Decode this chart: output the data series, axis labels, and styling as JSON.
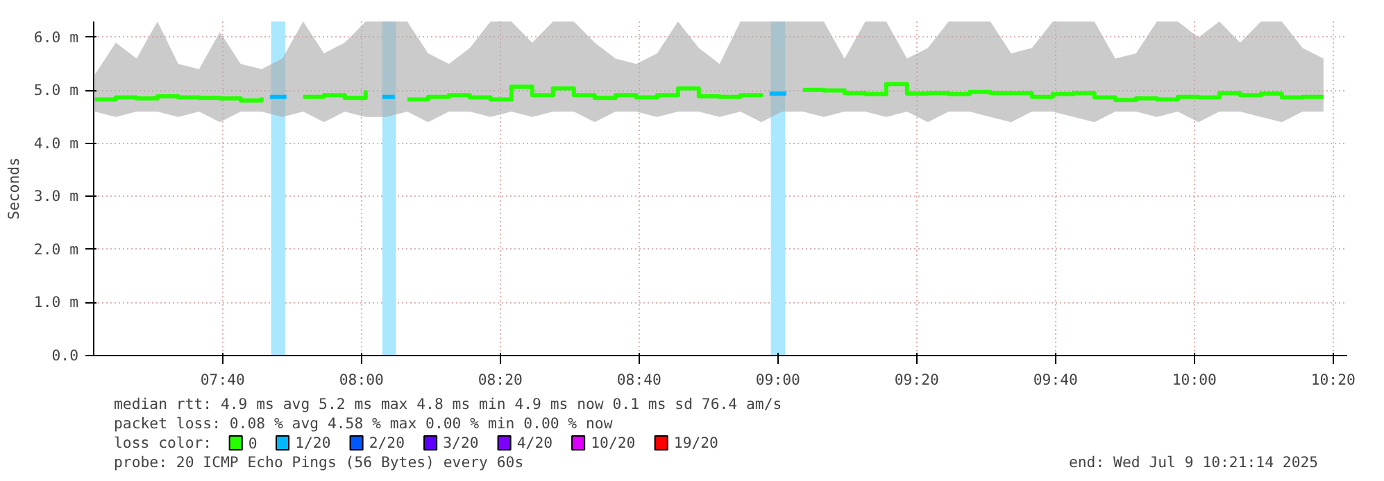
{
  "chart_data": {
    "type": "step",
    "ylabel": "Seconds",
    "legend_title": "loss color:",
    "legend": "bottom",
    "grid": true,
    "xlim": [
      7.357,
      10.367
    ],
    "ylim": [
      0,
      6.3
    ],
    "xticks": [
      {
        "value": 7.6667,
        "label": "07:40"
      },
      {
        "value": 8.0,
        "label": "08:00"
      },
      {
        "value": 8.3333,
        "label": "08:20"
      },
      {
        "value": 8.6667,
        "label": "08:40"
      },
      {
        "value": 9.0,
        "label": "09:00"
      },
      {
        "value": 9.3333,
        "label": "09:20"
      },
      {
        "value": 9.6667,
        "label": "09:40"
      },
      {
        "value": 10.0,
        "label": "10:00"
      },
      {
        "value": 10.3333,
        "label": "10:20"
      }
    ],
    "yticks": [
      {
        "value": 0,
        "label": "0.0"
      },
      {
        "value": 1,
        "label": "1.0 m"
      },
      {
        "value": 2,
        "label": "2.0 m"
      },
      {
        "value": 3,
        "label": "3.0 m"
      },
      {
        "value": 4,
        "label": "4.0 m"
      },
      {
        "value": 5,
        "label": "5.0 m"
      },
      {
        "value": 6,
        "label": "6.0 m"
      }
    ],
    "x": [
      7.36,
      7.41,
      7.46,
      7.51,
      7.56,
      7.61,
      7.66,
      7.71,
      7.76,
      7.81,
      7.86,
      7.91,
      7.96,
      8.01,
      8.06,
      8.11,
      8.16,
      8.21,
      8.26,
      8.31,
      8.36,
      8.41,
      8.46,
      8.51,
      8.56,
      8.61,
      8.66,
      8.71,
      8.76,
      8.81,
      8.86,
      8.91,
      8.96,
      9.01,
      9.06,
      9.11,
      9.16,
      9.21,
      9.26,
      9.31,
      9.36,
      9.41,
      9.46,
      9.51,
      9.56,
      9.61,
      9.66,
      9.71,
      9.76,
      9.81,
      9.86,
      9.91,
      9.96,
      10.01,
      10.06,
      10.11,
      10.16,
      10.21,
      10.26,
      10.31
    ],
    "series": [
      {
        "name": "0",
        "color": "#26ff00",
        "values": [
          4.83,
          4.87,
          4.85,
          4.89,
          4.87,
          4.86,
          4.85,
          4.81,
          4.87,
          null,
          4.88,
          4.91,
          4.86,
          5.0,
          null,
          4.83,
          4.88,
          4.91,
          4.87,
          4.83,
          5.07,
          4.91,
          5.04,
          4.91,
          4.86,
          4.91,
          4.87,
          4.91,
          5.04,
          4.89,
          4.88,
          4.91,
          4.88,
          null,
          5.01,
          5.0,
          4.95,
          4.93,
          5.12,
          4.94,
          4.95,
          4.93,
          4.97,
          4.95,
          4.95,
          4.88,
          4.93,
          4.95,
          4.87,
          4.82,
          4.85,
          4.83,
          4.88,
          4.87,
          4.95,
          4.91,
          4.94,
          4.87,
          4.88,
          4.88
        ],
        "lower": [
          4.6,
          4.5,
          4.6,
          4.6,
          4.5,
          4.6,
          4.4,
          4.6,
          4.6,
          4.5,
          4.6,
          4.4,
          4.6,
          4.5,
          4.5,
          4.6,
          4.4,
          4.6,
          4.6,
          4.5,
          4.6,
          4.5,
          4.6,
          4.6,
          4.4,
          4.6,
          4.6,
          4.5,
          4.6,
          4.6,
          4.5,
          4.6,
          4.4,
          4.6,
          4.6,
          4.5,
          4.6,
          4.6,
          4.5,
          4.6,
          4.4,
          4.6,
          4.6,
          4.5,
          4.4,
          4.6,
          4.6,
          4.5,
          4.4,
          4.6,
          4.6,
          4.5,
          4.6,
          4.4,
          4.6,
          4.6,
          4.5,
          4.4,
          4.6,
          4.6
        ],
        "upper": [
          5.3,
          5.9,
          5.6,
          6.3,
          5.5,
          5.4,
          6.1,
          5.5,
          5.4,
          5.6,
          6.3,
          5.7,
          5.9,
          6.3,
          6.3,
          6.3,
          5.7,
          5.5,
          5.8,
          6.3,
          6.3,
          5.9,
          6.3,
          6.3,
          5.9,
          5.6,
          5.5,
          5.7,
          6.3,
          5.8,
          5.5,
          6.3,
          6.3,
          6.3,
          6.3,
          6.3,
          5.6,
          6.3,
          6.3,
          5.6,
          5.8,
          6.3,
          6.3,
          6.3,
          5.7,
          5.8,
          6.3,
          6.3,
          6.3,
          5.6,
          5.7,
          6.3,
          6.3,
          6.0,
          6.3,
          5.9,
          6.3,
          6.3,
          5.8,
          5.6
        ]
      },
      {
        "name": "1/20",
        "color": "#00b8ff",
        "type": "line",
        "x": [
          7.78,
          7.82,
          7.83,
          8.05,
          8.08,
          8.09,
          8.98,
          9.02
        ],
        "values": [
          4.88,
          4.88,
          null,
          4.88,
          4.88,
          null,
          4.94,
          4.94
        ]
      },
      {
        "name": "2/20",
        "color": "#0059ff",
        "values": [
          null,
          null,
          null,
          null,
          null,
          null,
          null,
          null,
          null,
          null,
          null,
          null,
          null,
          null,
          null,
          null,
          null,
          null,
          null,
          null,
          null,
          null,
          null,
          null,
          null,
          null,
          null,
          null,
          null,
          null,
          null,
          null,
          null,
          null,
          null,
          null,
          null,
          null,
          null,
          null,
          null,
          null,
          null,
          null,
          null,
          null,
          null,
          null,
          null,
          null,
          null,
          null,
          null,
          null,
          null,
          null,
          null,
          null,
          null,
          null
        ]
      },
      {
        "name": "3/20",
        "color": "#5e00ff",
        "values": [
          null,
          null,
          null,
          null,
          null,
          null,
          null,
          null,
          null,
          null,
          null,
          null,
          null,
          null,
          null,
          null,
          null,
          null,
          null,
          null,
          null,
          null,
          null,
          null,
          null,
          null,
          null,
          null,
          null,
          null,
          null,
          null,
          null,
          null,
          null,
          null,
          null,
          null,
          null,
          null,
          null,
          null,
          null,
          null,
          null,
          null,
          null,
          null,
          null,
          null,
          null,
          null,
          null,
          null,
          null,
          null,
          null,
          null,
          null,
          null
        ]
      },
      {
        "name": "4/20",
        "color": "#7e00ff",
        "values": [
          null,
          null,
          null,
          null,
          null,
          null,
          null,
          null,
          null,
          null,
          null,
          null,
          null,
          null,
          null,
          null,
          null,
          null,
          null,
          null,
          null,
          null,
          null,
          null,
          null,
          null,
          null,
          null,
          null,
          null,
          null,
          null,
          null,
          null,
          null,
          null,
          null,
          null,
          null,
          null,
          null,
          null,
          null,
          null,
          null,
          null,
          null,
          null,
          null,
          null,
          null,
          null,
          null,
          null,
          null,
          null,
          null,
          null,
          null,
          null
        ]
      },
      {
        "name": "10/20",
        "color": "#dd00ff",
        "values": [
          null,
          null,
          null,
          null,
          null,
          null,
          null,
          null,
          null,
          null,
          null,
          null,
          null,
          null,
          null,
          null,
          null,
          null,
          null,
          null,
          null,
          null,
          null,
          null,
          null,
          null,
          null,
          null,
          null,
          null,
          null,
          null,
          null,
          null,
          null,
          null,
          null,
          null,
          null,
          null,
          null,
          null,
          null,
          null,
          null,
          null,
          null,
          null,
          null,
          null,
          null,
          null,
          null,
          null,
          null,
          null,
          null,
          null,
          null,
          null
        ]
      },
      {
        "name": "19/20",
        "color": "#ff0000",
        "values": [
          null,
          null,
          null,
          null,
          null,
          null,
          null,
          null,
          null,
          null,
          null,
          null,
          null,
          null,
          null,
          null,
          null,
          null,
          null,
          null,
          null,
          null,
          null,
          null,
          null,
          null,
          null,
          null,
          null,
          null,
          null,
          null,
          null,
          null,
          null,
          null,
          null,
          null,
          null,
          null,
          null,
          null,
          null,
          null,
          null,
          null,
          null,
          null,
          null,
          null,
          null,
          null,
          null,
          null,
          null,
          null,
          null,
          null,
          null,
          null
        ]
      }
    ],
    "bands": [
      {
        "axis": "x",
        "from": 7.783,
        "to": 7.817,
        "color": "#aae8ff"
      },
      {
        "axis": "x",
        "from": 8.05,
        "to": 8.083,
        "color": "#aae8ff"
      },
      {
        "axis": "x",
        "from": 8.983,
        "to": 9.017,
        "color": "#aae8ff"
      }
    ],
    "annotations": [
      "median rtt:  4.9 ms avg  5.2 ms max  4.8 ms min  4.9 ms now  0.1 ms sd  76.4   am/s",
      "packet loss: 0.08 % avg  4.58 % max  0.00 % min  0.00 % now",
      "probe:       20 ICMP Echo Pings (56 Bytes) every 60s",
      "end: Wed Jul  9 10:21:14 2025"
    ]
  }
}
